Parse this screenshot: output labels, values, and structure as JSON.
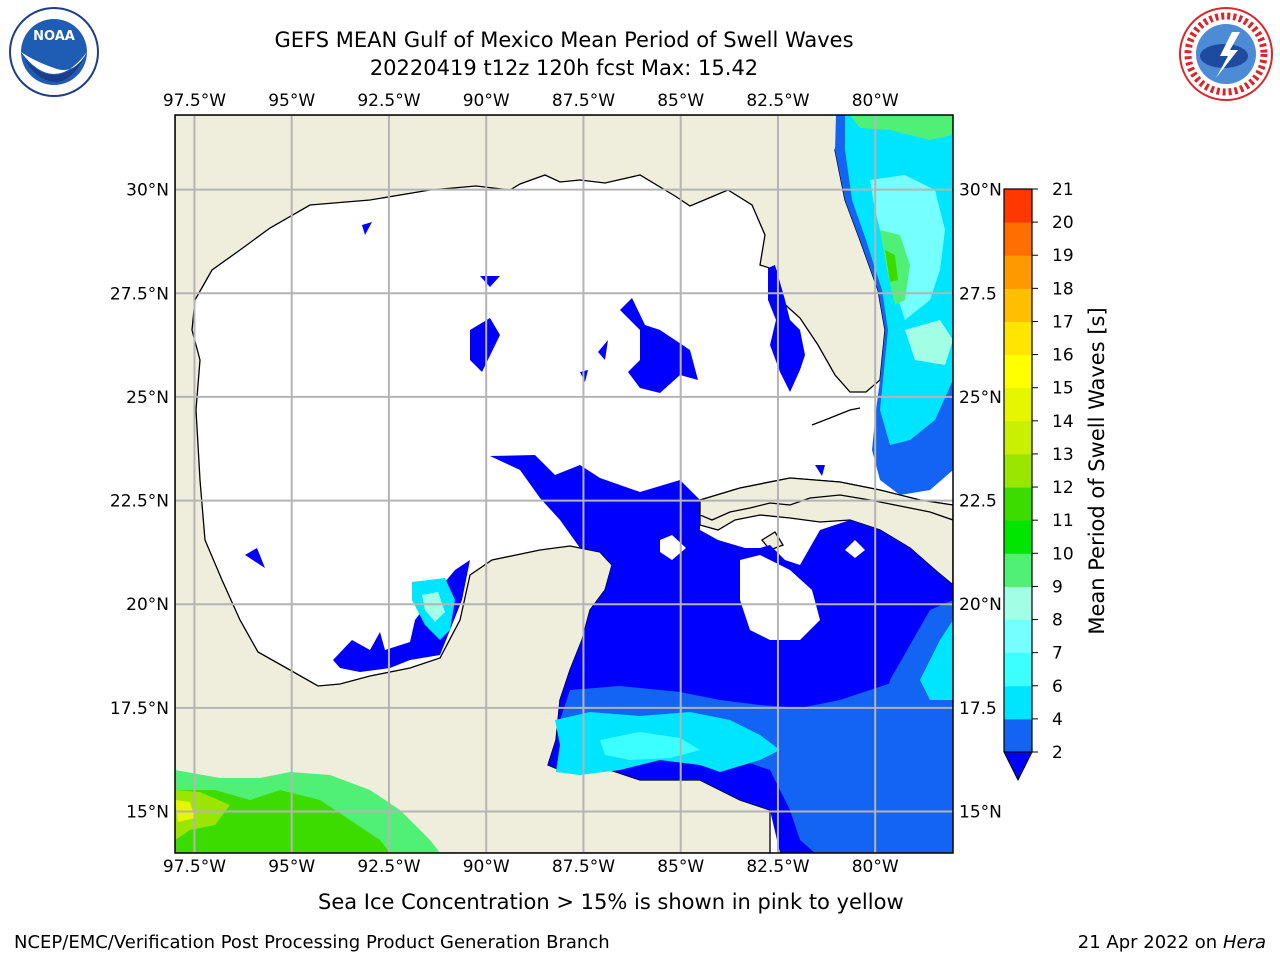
{
  "title": {
    "line1": "GEFS MEAN Gulf of Mexico Mean Period of Swell Waves",
    "line2": "20220419 t12z 120h fcst   Max: 15.42"
  },
  "map": {
    "lon_ticks": [
      "97.5°W",
      "95°W",
      "92.5°W",
      "90°W",
      "87.5°W",
      "85°W",
      "82.5°W",
      "80°W"
    ],
    "lat_ticks_left": [
      "30°N",
      "27.5°N",
      "25°N",
      "22.5°N",
      "20°N",
      "17.5°N",
      "15°N"
    ],
    "lat_ticks_right": [
      "30°N",
      "27.5",
      "25°N",
      "22.5",
      "20°N",
      "17.5",
      "15°N"
    ],
    "lon_range": [
      -98,
      -78
    ],
    "lat_range": [
      14,
      31.8
    ],
    "land_color": "#efeedc",
    "grid": true
  },
  "colorbar": {
    "label": "Mean Period of Swell Waves [s]",
    "ticks": [
      "2",
      "4",
      "6",
      "7",
      "8",
      "9",
      "10",
      "11",
      "12",
      "13",
      "14",
      "15",
      "16",
      "17",
      "18",
      "19",
      "20",
      "21"
    ],
    "colors": [
      "#1464f4",
      "#00e5ff",
      "#3cffff",
      "#75ffff",
      "#a2ffe6",
      "#50f077",
      "#00e600",
      "#3cdc00",
      "#9ae600",
      "#c8f000",
      "#e6f500",
      "#ffff00",
      "#ffe600",
      "#ffbf00",
      "#ff9900",
      "#ff6e00",
      "#ff3700",
      "#ff0000"
    ],
    "under_color": "#0000ff"
  },
  "note": "Sea Ice Concentration > 15% is shown in pink to yellow",
  "footer": {
    "left": "NCEP/EMC/Verification Post Processing Product Generation Branch",
    "right_date": "21 Apr 2022 on ",
    "right_host": "Hera"
  },
  "logos": {
    "noaa_text": "NOAA",
    "nws_text": "NATIONAL WEATHER SERVICE"
  }
}
